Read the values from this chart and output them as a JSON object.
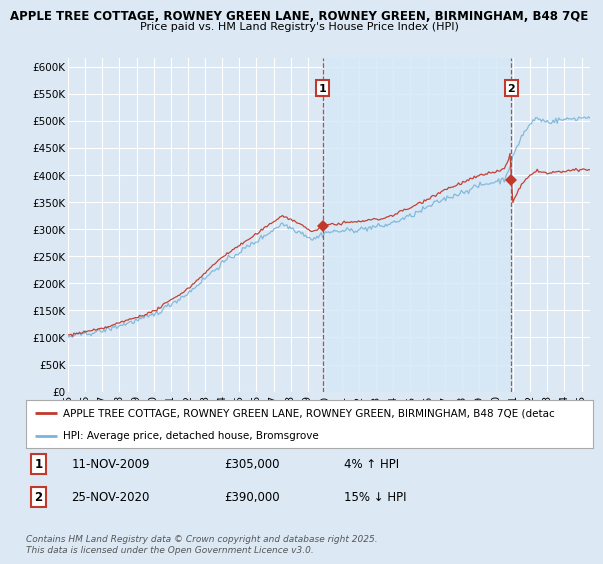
{
  "title_line1": "APPLE TREE COTTAGE, ROWNEY GREEN LANE, ROWNEY GREEN, BIRMINGHAM, B48 7QE",
  "title_line2": "Price paid vs. HM Land Registry's House Price Index (HPI)",
  "ylabel_ticks": [
    "£0",
    "£50K",
    "£100K",
    "£150K",
    "£200K",
    "£250K",
    "£300K",
    "£350K",
    "£400K",
    "£450K",
    "£500K",
    "£550K",
    "£600K"
  ],
  "ytick_vals": [
    0,
    50000,
    100000,
    150000,
    200000,
    250000,
    300000,
    350000,
    400000,
    450000,
    500000,
    550000,
    600000
  ],
  "ylim": [
    0,
    615000
  ],
  "xlim_start": 1995.0,
  "xlim_end": 2025.5,
  "xtick_years": [
    1995,
    1996,
    1997,
    1998,
    1999,
    2000,
    2001,
    2002,
    2003,
    2004,
    2005,
    2006,
    2007,
    2008,
    2009,
    2010,
    2011,
    2012,
    2013,
    2014,
    2015,
    2016,
    2017,
    2018,
    2019,
    2020,
    2021,
    2022,
    2023,
    2024,
    2025
  ],
  "hpi_color": "#7ab4d8",
  "hpi_fill_color": "#d6e8f7",
  "price_color": "#c0392b",
  "vline_color": "#c0392b",
  "background_color": "#dce9f5",
  "plot_bg_color": "#dce9f5",
  "grid_color": "#ffffff",
  "legend_label_price": "APPLE TREE COTTAGE, ROWNEY GREEN LANE, ROWNEY GREEN, BIRMINGHAM, B48 7QE (detac",
  "legend_label_hpi": "HPI: Average price, detached house, Bromsgrove",
  "annotation1_label": "1",
  "annotation1_date": "11-NOV-2009",
  "annotation1_price": "£305,000",
  "annotation1_hpi": "4% ↑ HPI",
  "annotation1_year": 2009.87,
  "annotation2_label": "2",
  "annotation2_date": "25-NOV-2020",
  "annotation2_price": "£390,000",
  "annotation2_hpi": "15% ↓ HPI",
  "annotation2_year": 2020.9,
  "footer": "Contains HM Land Registry data © Crown copyright and database right 2025.\nThis data is licensed under the Open Government Licence v3.0.",
  "purchase1_value": 305000,
  "purchase2_value": 390000
}
